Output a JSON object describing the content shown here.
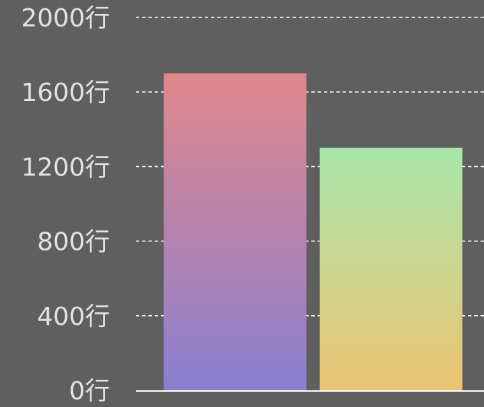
{
  "chart_data": {
    "type": "bar",
    "categories": [
      "",
      ""
    ],
    "values": [
      1700,
      1300
    ],
    "yticks": [
      "0行",
      "400行",
      "800行",
      "1200行",
      "1600行",
      "2000行"
    ],
    "yunit": "行",
    "ylim": [
      0,
      2000
    ],
    "grid": true,
    "legend": "none",
    "gradients": [
      {
        "top": "#e0878a",
        "bottom": "#8b7fd1"
      },
      {
        "top": "#a9e6a9",
        "bottom": "#edc474"
      }
    ],
    "colors": {
      "background": "#5f5f5f",
      "tick_text": "#e2e2e2",
      "gridline": "#ffffff",
      "baseline": "#ffffff"
    }
  }
}
